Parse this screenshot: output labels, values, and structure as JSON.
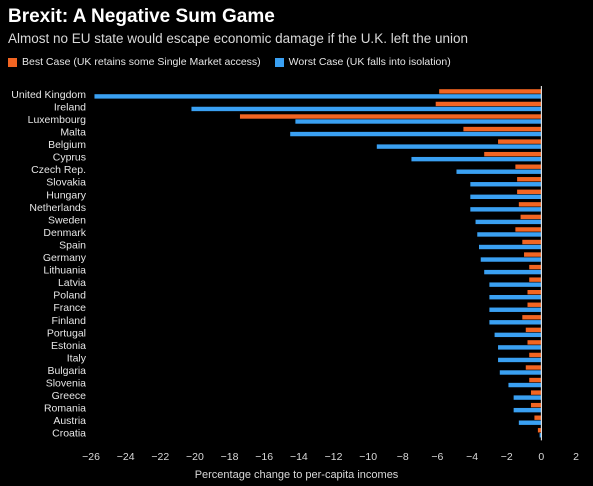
{
  "title": "Brexit: A Negative Sum Game",
  "subtitle": "Almost no EU state would escape economic damage if the U.K. left the union",
  "colors": {
    "best": "#f26522",
    "worst": "#3aa0f2",
    "background": "#000000",
    "axis": "#ffffff"
  },
  "chart_data": {
    "type": "bar",
    "orientation": "horizontal",
    "xlabel": "Percentage change to per-capita incomes",
    "xlim": [
      -26,
      2
    ],
    "xticks": [
      -26,
      -24,
      -22,
      -20,
      -18,
      -16,
      -14,
      -12,
      -10,
      -8,
      -6,
      -4,
      -2,
      0,
      2
    ],
    "legend_position": "top-left",
    "categories": [
      "United Kingdom",
      "Ireland",
      "Luxembourg",
      "Malta",
      "Belgium",
      "Cyprus",
      "Czech Rep.",
      "Slovakia",
      "Hungary",
      "Netherlands",
      "Sweden",
      "Denmark",
      "Spain",
      "Germany",
      "Lithuania",
      "Latvia",
      "Poland",
      "France",
      "Finland",
      "Portugal",
      "Estonia",
      "Italy",
      "Bulgaria",
      "Slovenia",
      "Greece",
      "Romania",
      "Austria",
      "Croatia"
    ],
    "series": [
      {
        "name": "Best Case (UK retains some Single Market access)",
        "color": "#f26522",
        "values": [
          -5.9,
          -6.1,
          -17.4,
          -4.5,
          -2.5,
          -3.3,
          -1.5,
          -1.4,
          -1.4,
          -1.3,
          -1.2,
          -1.5,
          -1.1,
          -1.0,
          -0.7,
          -0.7,
          -0.8,
          -0.8,
          -1.1,
          -0.9,
          -0.8,
          -0.7,
          -0.9,
          -0.7,
          -0.6,
          -0.6,
          -0.4,
          -0.2
        ]
      },
      {
        "name": "Worst Case (UK falls into isolation)",
        "color": "#3aa0f2",
        "values": [
          -25.8,
          -20.2,
          -14.2,
          -14.5,
          -9.5,
          -7.5,
          -4.9,
          -4.1,
          -4.1,
          -4.1,
          -3.8,
          -3.7,
          -3.6,
          -3.5,
          -3.3,
          -3.0,
          -3.0,
          -3.0,
          -3.0,
          -2.7,
          -2.5,
          -2.5,
          -2.4,
          -1.9,
          -1.6,
          -1.6,
          -1.3,
          -0.1
        ]
      }
    ]
  }
}
